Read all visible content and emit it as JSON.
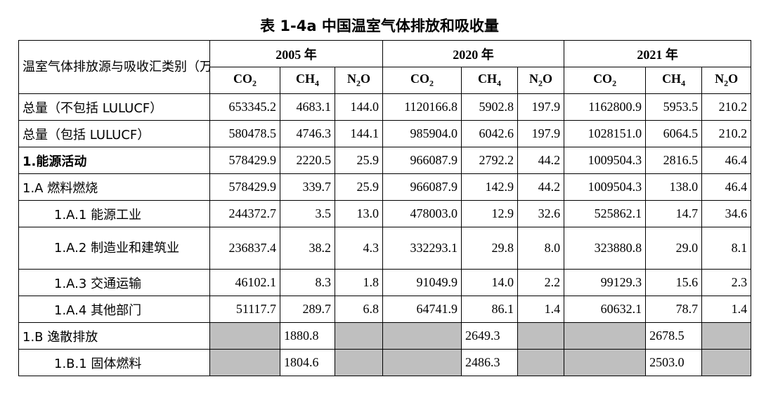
{
  "title": "表 1-4a 中国温室气体排放和吸收量",
  "header": {
    "category_label": "温室气体排放源与吸收汇类别（万吨）",
    "years": [
      "2005 年",
      "2020 年",
      "2021 年"
    ],
    "gases": {
      "co2": {
        "base": "CO",
        "sub": "2"
      },
      "ch4": {
        "base": "CH",
        "sub": "4"
      },
      "n2o": {
        "base": "N",
        "sub": "2",
        "tail": "O"
      }
    }
  },
  "rows": [
    {
      "label": "总量（不包括 LULUCF）",
      "values": [
        "653345.2",
        "4683.1",
        "144.0",
        "1120166.8",
        "5902.8",
        "197.9",
        "1162800.9",
        "5953.5",
        "210.2"
      ]
    },
    {
      "label": "总量（包括 LULUCF）",
      "values": [
        "580478.5",
        "4746.3",
        "144.1",
        "985904.0",
        "6042.6",
        "197.9",
        "1028151.0",
        "6064.5",
        "210.2"
      ]
    },
    {
      "label": "1.能源活动",
      "values": [
        "578429.9",
        "2220.5",
        "25.9",
        "966087.9",
        "2792.2",
        "44.2",
        "1009504.3",
        "2816.5",
        "46.4"
      ]
    },
    {
      "label": "1.A 燃料燃烧",
      "values": [
        "578429.9",
        "339.7",
        "25.9",
        "966087.9",
        "142.9",
        "44.2",
        "1009504.3",
        "138.0",
        "46.4"
      ]
    },
    {
      "label": "1.A.1 能源工业",
      "values": [
        "244372.7",
        "3.5",
        "13.0",
        "478003.0",
        "12.9",
        "32.6",
        "525862.1",
        "14.7",
        "34.6"
      ]
    },
    {
      "label": "1.A.2 制造业和建筑业",
      "values": [
        "236837.4",
        "38.2",
        "4.3",
        "332293.1",
        "29.8",
        "8.0",
        "323880.8",
        "29.0",
        "8.1"
      ]
    },
    {
      "label": "1.A.3 交通运输",
      "values": [
        "46102.1",
        "8.3",
        "1.8",
        "91049.9",
        "14.0",
        "2.2",
        "99129.3",
        "15.6",
        "2.3"
      ]
    },
    {
      "label": "1.A.4 其他部门",
      "values": [
        "51117.7",
        "289.7",
        "6.8",
        "64741.9",
        "86.1",
        "1.4",
        "60632.1",
        "78.7",
        "1.4"
      ]
    },
    {
      "label": "1.B 逸散排放",
      "values": [
        "",
        "1880.8",
        "",
        "",
        "2649.3",
        "",
        "",
        "2678.5",
        ""
      ]
    },
    {
      "label": "1.B.1 固体燃料",
      "values": [
        "",
        "1804.6",
        "",
        "",
        "2486.3",
        "",
        "",
        "2503.0",
        ""
      ]
    }
  ],
  "colors": {
    "shade": "#bfbfbf",
    "border": "#000000"
  }
}
